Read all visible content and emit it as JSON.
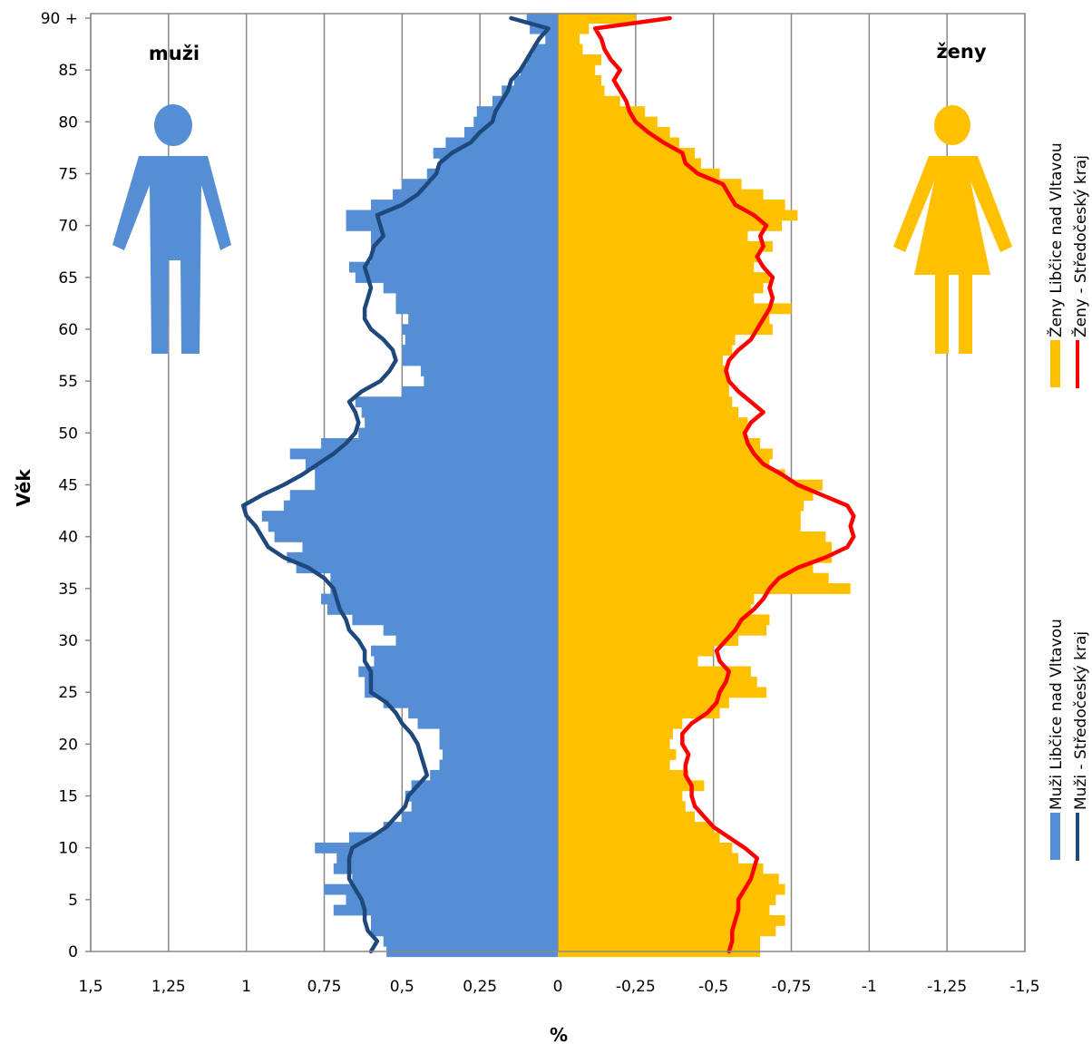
{
  "chart_data": {
    "type": "bar",
    "orientation": "horizontal",
    "xlabel": "%",
    "ylabel": "Věk",
    "xlim": [
      1.5,
      -1.5
    ],
    "x_ticks": [
      1.5,
      1.25,
      1,
      0.75,
      0.5,
      0.25,
      0,
      -0.25,
      -0.5,
      -0.75,
      -1,
      -1.25,
      -1.5
    ],
    "x_tick_labels": [
      "1,5",
      "1,25",
      "1",
      "0,75",
      "0,5",
      "0,25",
      "0",
      "-0,25",
      "-0,5",
      "-0,75",
      "-1",
      "-1,25",
      "-1,5"
    ],
    "y_ticks": [
      0,
      5,
      10,
      15,
      20,
      25,
      30,
      35,
      40,
      45,
      50,
      55,
      60,
      65,
      70,
      75,
      80,
      85,
      90
    ],
    "y_tick_labels": [
      "0",
      "5",
      "10",
      "15",
      "20",
      "25",
      "30",
      "35",
      "40",
      "45",
      "50",
      "55",
      "60",
      "65",
      "70",
      "75",
      "80",
      "85",
      "90 +"
    ],
    "grid": "vertical",
    "ages": [
      0,
      1,
      2,
      3,
      4,
      5,
      6,
      7,
      8,
      9,
      10,
      11,
      12,
      13,
      14,
      15,
      16,
      17,
      18,
      19,
      20,
      21,
      22,
      23,
      24,
      25,
      26,
      27,
      28,
      29,
      30,
      31,
      32,
      33,
      34,
      35,
      36,
      37,
      38,
      39,
      40,
      41,
      42,
      43,
      44,
      45,
      46,
      47,
      48,
      49,
      50,
      51,
      52,
      53,
      54,
      55,
      56,
      57,
      58,
      59,
      60,
      61,
      62,
      63,
      64,
      65,
      66,
      67,
      68,
      69,
      70,
      71,
      72,
      73,
      74,
      75,
      76,
      77,
      78,
      79,
      80,
      81,
      82,
      83,
      84,
      85,
      86,
      87,
      88,
      89,
      90
    ],
    "series": [
      {
        "name": "Muži Libčice nad Vltavou",
        "kind": "bar",
        "side": "left",
        "color": "#558ed5",
        "values": [
          0.55,
          0.56,
          0.6,
          0.6,
          0.72,
          0.68,
          0.75,
          0.66,
          0.72,
          0.71,
          0.78,
          0.67,
          0.56,
          0.5,
          0.47,
          0.49,
          0.47,
          0.41,
          0.38,
          0.37,
          0.38,
          0.38,
          0.45,
          0.48,
          0.56,
          0.62,
          0.62,
          0.64,
          0.59,
          0.6,
          0.52,
          0.56,
          0.66,
          0.74,
          0.76,
          0.73,
          0.73,
          0.84,
          0.87,
          0.82,
          0.91,
          0.93,
          0.95,
          0.88,
          0.86,
          0.78,
          0.78,
          0.81,
          0.86,
          0.76,
          0.64,
          0.62,
          0.63,
          0.65,
          0.5,
          0.43,
          0.44,
          0.5,
          0.5,
          0.49,
          0.5,
          0.48,
          0.52,
          0.52,
          0.56,
          0.65,
          0.67,
          0.6,
          0.6,
          0.6,
          0.68,
          0.68,
          0.6,
          0.53,
          0.5,
          0.42,
          0.38,
          0.4,
          0.36,
          0.3,
          0.27,
          0.26,
          0.21,
          0.18,
          0.14,
          0.12,
          0.1,
          0.08,
          0.04,
          0.09,
          0.1
        ]
      },
      {
        "name": "Muži - Středočeský kraj",
        "kind": "line",
        "side": "left",
        "color": "#1f497d",
        "values": [
          0.6,
          0.58,
          0.61,
          0.62,
          0.62,
          0.63,
          0.65,
          0.67,
          0.67,
          0.67,
          0.66,
          0.6,
          0.55,
          0.52,
          0.49,
          0.48,
          0.45,
          0.42,
          0.43,
          0.44,
          0.45,
          0.47,
          0.5,
          0.52,
          0.55,
          0.6,
          0.6,
          0.6,
          0.62,
          0.62,
          0.64,
          0.67,
          0.68,
          0.7,
          0.71,
          0.72,
          0.75,
          0.8,
          0.88,
          0.93,
          0.95,
          0.97,
          1.0,
          1.01,
          0.95,
          0.88,
          0.82,
          0.77,
          0.72,
          0.68,
          0.65,
          0.64,
          0.65,
          0.67,
          0.63,
          0.57,
          0.54,
          0.52,
          0.53,
          0.56,
          0.6,
          0.62,
          0.62,
          0.61,
          0.6,
          0.61,
          0.62,
          0.6,
          0.59,
          0.56,
          0.57,
          0.58,
          0.5,
          0.45,
          0.42,
          0.39,
          0.38,
          0.34,
          0.28,
          0.25,
          0.21,
          0.2,
          0.18,
          0.16,
          0.15,
          0.12,
          0.1,
          0.08,
          0.06,
          0.03,
          0.15
        ]
      },
      {
        "name": "Ženy Libčice nad Vltavou",
        "kind": "bar",
        "side": "right",
        "color": "#ffc000",
        "values": [
          -0.65,
          -0.65,
          -0.7,
          -0.73,
          -0.68,
          -0.7,
          -0.73,
          -0.71,
          -0.66,
          -0.58,
          -0.56,
          -0.52,
          -0.5,
          -0.44,
          -0.41,
          -0.4,
          -0.47,
          -0.42,
          -0.36,
          -0.38,
          -0.36,
          -0.37,
          -0.4,
          -0.52,
          -0.55,
          -0.67,
          -0.64,
          -0.62,
          -0.45,
          -0.5,
          -0.58,
          -0.67,
          -0.68,
          -0.62,
          -0.63,
          -0.94,
          -0.87,
          -0.82,
          -0.88,
          -0.88,
          -0.86,
          -0.78,
          -0.78,
          -0.79,
          -0.82,
          -0.85,
          -0.73,
          -0.68,
          -0.69,
          -0.65,
          -0.6,
          -0.61,
          -0.58,
          -0.56,
          -0.55,
          -0.55,
          -0.54,
          -0.53,
          -0.56,
          -0.57,
          -0.69,
          -0.68,
          -0.75,
          -0.63,
          -0.66,
          -0.68,
          -0.63,
          -0.65,
          -0.69,
          -0.61,
          -0.72,
          -0.77,
          -0.73,
          -0.66,
          -0.59,
          -0.52,
          -0.46,
          -0.44,
          -0.39,
          -0.36,
          -0.32,
          -0.28,
          -0.2,
          -0.15,
          -0.14,
          -0.12,
          -0.14,
          -0.08,
          -0.07,
          -0.1,
          -0.25
        ]
      },
      {
        "name": "Ženy - Středočeský kraj",
        "kind": "line",
        "side": "right",
        "color": "#ff0000",
        "values": [
          -0.55,
          -0.56,
          -0.56,
          -0.57,
          -0.58,
          -0.58,
          -0.6,
          -0.62,
          -0.63,
          -0.64,
          -0.6,
          -0.55,
          -0.5,
          -0.47,
          -0.44,
          -0.43,
          -0.43,
          -0.41,
          -0.41,
          -0.42,
          -0.4,
          -0.4,
          -0.43,
          -0.48,
          -0.51,
          -0.52,
          -0.54,
          -0.55,
          -0.52,
          -0.51,
          -0.54,
          -0.57,
          -0.59,
          -0.63,
          -0.66,
          -0.68,
          -0.71,
          -0.77,
          -0.86,
          -0.93,
          -0.95,
          -0.94,
          -0.95,
          -0.93,
          -0.85,
          -0.77,
          -0.72,
          -0.66,
          -0.63,
          -0.61,
          -0.6,
          -0.62,
          -0.66,
          -0.62,
          -0.58,
          -0.55,
          -0.54,
          -0.55,
          -0.58,
          -0.62,
          -0.64,
          -0.66,
          -0.68,
          -0.69,
          -0.68,
          -0.69,
          -0.66,
          -0.64,
          -0.66,
          -0.65,
          -0.67,
          -0.63,
          -0.57,
          -0.55,
          -0.53,
          -0.45,
          -0.41,
          -0.4,
          -0.34,
          -0.29,
          -0.25,
          -0.23,
          -0.22,
          -0.2,
          -0.18,
          -0.2,
          -0.17,
          -0.15,
          -0.14,
          -0.12,
          -0.36
        ]
      }
    ],
    "legend_placement": "right-vertical",
    "legend_groups": [
      {
        "placement": "top-right",
        "entries": [
          {
            "label": "Ženy Libčice nad Vltavou",
            "kind": "bar",
            "color": "#ffc000"
          },
          {
            "label": "Ženy - Středočeský kraj",
            "kind": "line",
            "color": "#ff0000"
          }
        ]
      },
      {
        "placement": "bottom-right",
        "entries": [
          {
            "label": "Muži Libčice nad Vltavou",
            "kind": "bar",
            "color": "#558ed5"
          },
          {
            "label": "Muži - Středočeský kraj",
            "kind": "line",
            "color": "#1f497d"
          }
        ]
      }
    ],
    "annotations": {
      "male_label": "muži",
      "female_label": "ženy",
      "male_icon": "man-silhouette-icon",
      "female_icon": "woman-silhouette-icon",
      "male_icon_color": "#558ed5",
      "female_icon_color": "#ffc000"
    },
    "gridline_color": "#888888"
  }
}
